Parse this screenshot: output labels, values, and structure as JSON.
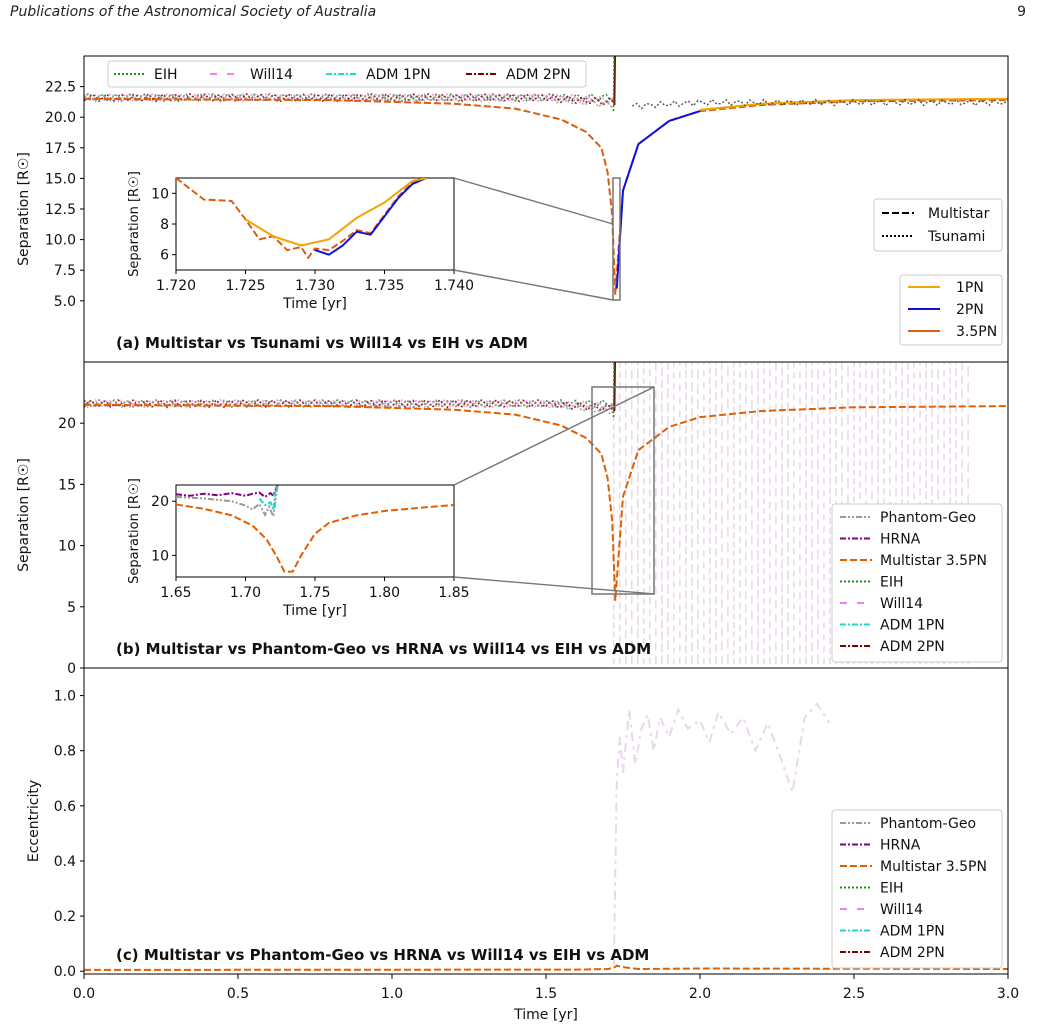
{
  "header": {
    "journal": "Publications of the Astronomical Society of Australia",
    "page_number": "9"
  },
  "xlabel": "Time [yr]",
  "x_ticks": [
    "0.0",
    "0.5",
    "1.0",
    "1.5",
    "2.0",
    "2.5",
    "3.0"
  ],
  "colors": {
    "1PN": "#f5a300",
    "2PN": "#1010e0",
    "3.5PN": "#d95f0e",
    "EIH": "#1f8b1f",
    "Will14": "#ee82ee",
    "ADM 1PN": "#20d8c8",
    "ADM 2PN": "#800000",
    "Phantom-Geo": "#999999",
    "HRNA": "#800080",
    "Multistar 3.5PN": "#e06000",
    "noise": "#e9d7ea"
  },
  "chart_data": [
    {
      "type": "line",
      "panel_label": "(a) Multistar vs Tsunami vs Will14 vs EIH vs ADM",
      "ylabel": "Separation [R☉]",
      "xlim": [
        0,
        3
      ],
      "ylim": [
        0,
        25
      ],
      "y_ticks": [
        "5.0",
        "7.5",
        "10.0",
        "12.5",
        "15.0",
        "17.5",
        "20.0",
        "22.5"
      ],
      "legend_top": [
        "EIH",
        "Will14",
        "ADM 1PN",
        "ADM 2PN"
      ],
      "legend_style": [
        "Multistar",
        "Tsunami"
      ],
      "legend_pn": [
        "1PN",
        "2PN",
        "3.5PN"
      ],
      "series": [
        {
          "name": "3.5PN",
          "x": [
            0,
            0.4,
            0.8,
            1.2,
            1.4,
            1.55,
            1.63,
            1.68,
            1.7,
            1.715,
            1.725,
            1.735,
            1.75,
            1.8,
            1.9,
            2.0,
            2.2,
            2.5,
            3.0
          ],
          "y": [
            21.5,
            21.45,
            21.4,
            21.1,
            20.7,
            19.8,
            18.8,
            17.5,
            15.5,
            12,
            5.5,
            9,
            14,
            17.8,
            19.7,
            20.5,
            21,
            21.3,
            21.4
          ]
        },
        {
          "name": "2PN",
          "x": [
            1.73,
            1.75,
            1.8,
            1.9,
            2.0
          ],
          "y": [
            6,
            14,
            17.8,
            19.7,
            20.5
          ]
        },
        {
          "name": "1PN",
          "x": [
            2.0,
            2.2,
            2.5,
            3.0
          ],
          "y": [
            20.6,
            21.1,
            21.4,
            21.5
          ]
        }
      ],
      "inset": {
        "xlabel": "Time [yr]",
        "ylabel": "Separation [R☉]",
        "xlim": [
          1.72,
          1.74
        ],
        "ylim": [
          5,
          11
        ],
        "x_ticks": [
          "1.720",
          "1.725",
          "1.730",
          "1.735",
          "1.740"
        ],
        "y_ticks": [
          "6",
          "8",
          "10"
        ],
        "series": [
          {
            "name": "3.5PN",
            "x": [
              1.72,
              1.722,
              1.724,
              1.725,
              1.726,
              1.727,
              1.728,
              1.729,
              1.7295,
              1.73,
              1.731,
              1.732,
              1.733,
              1.734,
              1.735,
              1.736,
              1.737,
              1.738
            ],
            "y": [
              11,
              9.6,
              9.5,
              8.3,
              7.0,
              7.2,
              6.3,
              6.5,
              5.8,
              6.4,
              6.3,
              6.9,
              7.6,
              7.4,
              8.6,
              9.8,
              10.7,
              11
            ]
          },
          {
            "name": "2PN",
            "x": [
              1.73,
              1.731,
              1.732,
              1.733,
              1.734,
              1.735,
              1.736,
              1.737,
              1.738
            ],
            "y": [
              6.3,
              6.0,
              6.6,
              7.5,
              7.3,
              8.5,
              9.7,
              10.6,
              11
            ]
          },
          {
            "name": "1PN",
            "x": [
              1.725,
              1.727,
              1.729,
              1.731,
              1.733,
              1.735,
              1.737,
              1.738
            ],
            "y": [
              8.3,
              7.2,
              6.6,
              7.0,
              8.4,
              9.4,
              10.8,
              11
            ]
          }
        ]
      }
    },
    {
      "type": "line",
      "panel_label": "(b) Multistar vs Phantom-Geo vs HRNA vs Will14 vs EIH vs ADM",
      "ylabel": "Separation [R☉]",
      "xlim": [
        0,
        3
      ],
      "ylim": [
        0,
        25
      ],
      "y_ticks": [
        "0",
        "5",
        "10",
        "15",
        "20"
      ],
      "legend": [
        "Phantom-Geo",
        "HRNA",
        "Multistar 3.5PN",
        "EIH",
        "Will14",
        "ADM 1PN",
        "ADM 2PN"
      ],
      "series": [
        {
          "name": "Multistar 3.5PN",
          "x": [
            0,
            0.4,
            0.8,
            1.2,
            1.4,
            1.55,
            1.63,
            1.68,
            1.7,
            1.715,
            1.725,
            1.735,
            1.75,
            1.8,
            1.9,
            2.0,
            2.2,
            2.5,
            3.0
          ],
          "y": [
            21.5,
            21.45,
            21.4,
            21.1,
            20.7,
            19.8,
            18.8,
            17.5,
            15.5,
            12,
            5.5,
            9,
            14,
            17.8,
            19.7,
            20.5,
            21,
            21.3,
            21.4
          ]
        }
      ],
      "inset": {
        "xlabel": "Time [yr]",
        "ylabel": "Separation [R☉]",
        "xlim": [
          1.65,
          1.85
        ],
        "ylim": [
          6,
          23
        ],
        "x_ticks": [
          "1.65",
          "1.70",
          "1.75",
          "1.80",
          "1.85"
        ],
        "y_ticks": [
          "10",
          "20"
        ],
        "series": [
          {
            "name": "Multistar 3.5PN",
            "x": [
              1.65,
              1.67,
              1.69,
              1.705,
              1.715,
              1.722,
              1.728,
              1.734,
              1.74,
              1.75,
              1.76,
              1.78,
              1.8,
              1.83,
              1.85
            ],
            "y": [
              19.4,
              18.6,
              17.4,
              15.5,
              13,
              10,
              7,
              7,
              10,
              14,
              16,
              17.4,
              18.2,
              18.9,
              19.3
            ]
          },
          {
            "name": "HRNA",
            "x": [
              1.65,
              1.66,
              1.67,
              1.68,
              1.69,
              1.7,
              1.705,
              1.71,
              1.714,
              1.718,
              1.72,
              1.723
            ],
            "y": [
              21.3,
              21.0,
              21.4,
              21.1,
              21.5,
              21.0,
              21.4,
              21.6,
              20.8,
              21.5,
              21.0,
              23
            ]
          },
          {
            "name": "Phantom-Geo",
            "x": [
              1.65,
              1.67,
              1.69,
              1.7,
              1.705,
              1.71,
              1.714,
              1.717,
              1.72,
              1.723
            ],
            "y": [
              20.8,
              20.5,
              20.0,
              19.2,
              18.5,
              19.5,
              17.5,
              19.0,
              17.2,
              23
            ]
          },
          {
            "name": "ADM 1PN",
            "x": [
              1.71,
              1.714,
              1.718,
              1.72,
              1.722
            ],
            "y": [
              20.5,
              19.3,
              19.8,
              18.4,
              23
            ]
          }
        ]
      }
    },
    {
      "type": "line",
      "panel_label": "(c) Multistar vs Phantom-Geo vs HRNA vs Will14 vs EIH vs ADM",
      "ylabel": "Eccentricity",
      "xlim": [
        0,
        3
      ],
      "ylim": [
        -0.01,
        1.1
      ],
      "y_ticks": [
        "0.0",
        "0.2",
        "0.4",
        "0.6",
        "0.8",
        "1.0"
      ],
      "legend": [
        "Phantom-Geo",
        "HRNA",
        "Multistar 3.5PN",
        "EIH",
        "Will14",
        "ADM 1PN",
        "ADM 2PN"
      ],
      "series": [
        {
          "name": "Multistar 3.5PN",
          "x": [
            0,
            1.6,
            1.7,
            1.72,
            1.73,
            1.75,
            1.8,
            2.0,
            3.0
          ],
          "y": [
            0.005,
            0.006,
            0.008,
            0.012,
            0.02,
            0.015,
            0.008,
            0.01,
            0.008
          ]
        },
        {
          "name": "noise",
          "x": [
            1.72,
            1.73,
            1.74,
            1.75,
            1.77,
            1.79,
            1.81,
            1.83,
            1.85,
            1.87,
            1.9,
            1.93,
            1.96,
            2.0,
            2.03,
            2.06,
            2.1,
            2.14,
            2.18,
            2.22,
            2.26,
            2.3,
            2.34,
            2.38,
            2.42
          ],
          "y": [
            0.02,
            0.7,
            0.85,
            0.72,
            0.95,
            0.75,
            0.88,
            0.93,
            0.8,
            0.92,
            0.85,
            0.95,
            0.88,
            0.91,
            0.83,
            0.94,
            0.86,
            0.92,
            0.8,
            0.9,
            0.78,
            0.65,
            0.92,
            0.97,
            0.9
          ]
        }
      ]
    }
  ]
}
